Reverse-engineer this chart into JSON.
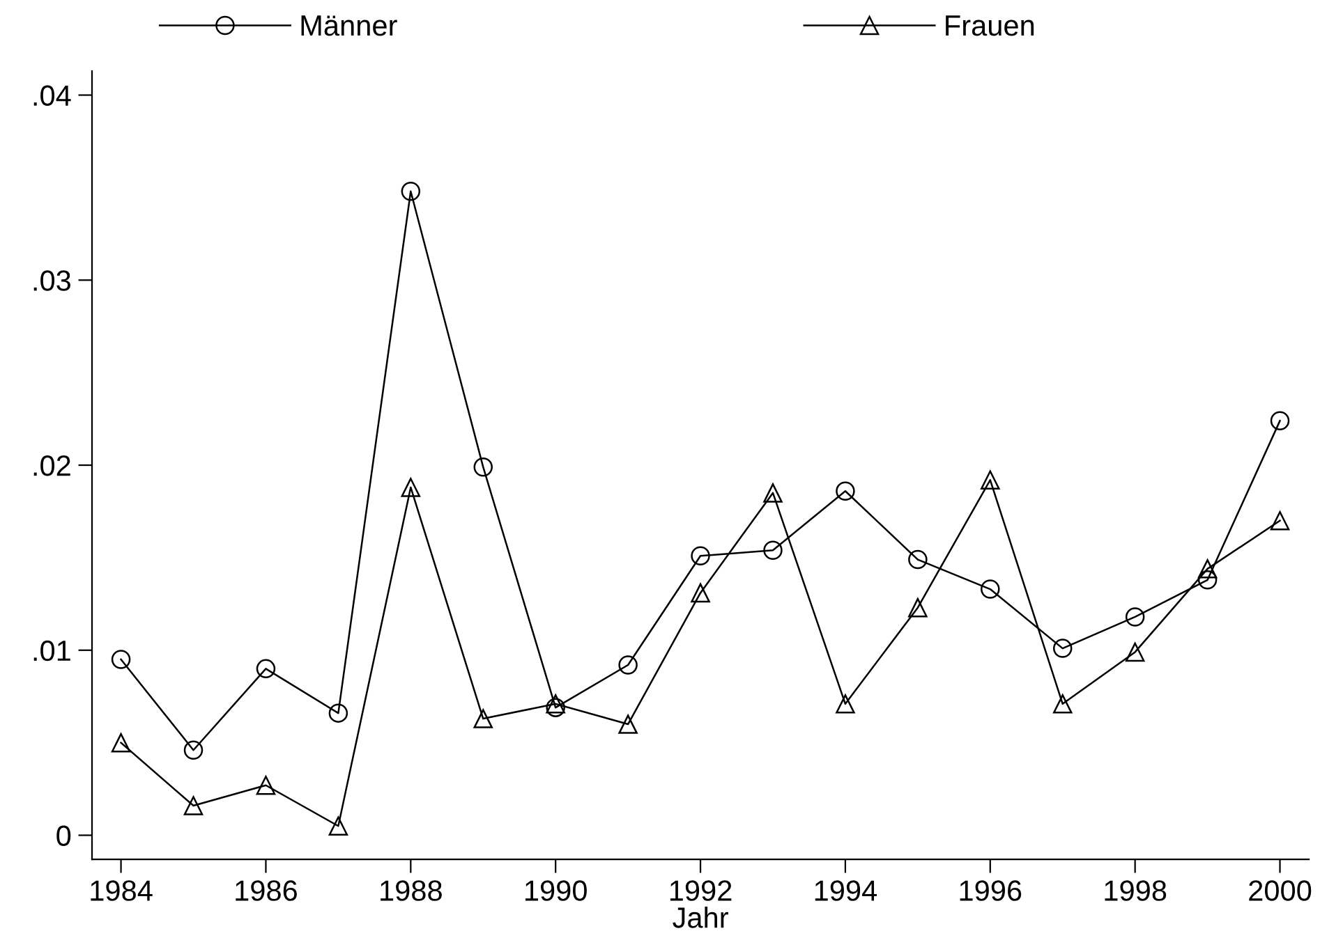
{
  "chart_data": {
    "type": "line",
    "xlabel": "Jahr",
    "x": [
      1984,
      1985,
      1986,
      1987,
      1988,
      1989,
      1990,
      1991,
      1992,
      1993,
      1994,
      1995,
      1996,
      1997,
      1998,
      1999,
      2000
    ],
    "series": [
      {
        "name": "Männer",
        "color": "#000000",
        "marker": "circle",
        "values": [
          0.0095,
          0.0046,
          0.009,
          0.0066,
          0.0348,
          0.0199,
          0.0069,
          0.0092,
          0.0151,
          0.0154,
          0.0186,
          0.0149,
          0.0133,
          0.0101,
          0.0118,
          0.0138,
          0.0224
        ]
      },
      {
        "name": "Frauen",
        "color": "#000000",
        "marker": "triangle",
        "values": [
          0.005,
          0.0016,
          0.0027,
          0.0005,
          0.0188,
          0.0063,
          0.0071,
          0.006,
          0.0131,
          0.0185,
          0.0071,
          0.0123,
          0.0192,
          0.0071,
          0.0099,
          0.0144,
          0.017
        ]
      }
    ],
    "xlim": [
      1983.6,
      2000.4
    ],
    "ylim": [
      -0.0013,
      0.0413
    ],
    "xticks": [
      1984,
      1986,
      1988,
      1990,
      1992,
      1994,
      1996,
      1998,
      2000
    ],
    "yticks": [
      {
        "value": 0,
        "label": "0"
      },
      {
        "value": 0.01,
        "label": ".01"
      },
      {
        "value": 0.02,
        "label": ".02"
      },
      {
        "value": 0.03,
        "label": ".03"
      },
      {
        "value": 0.04,
        "label": ".04"
      }
    ],
    "grid": false,
    "legend": "top",
    "line_style": "solid"
  }
}
